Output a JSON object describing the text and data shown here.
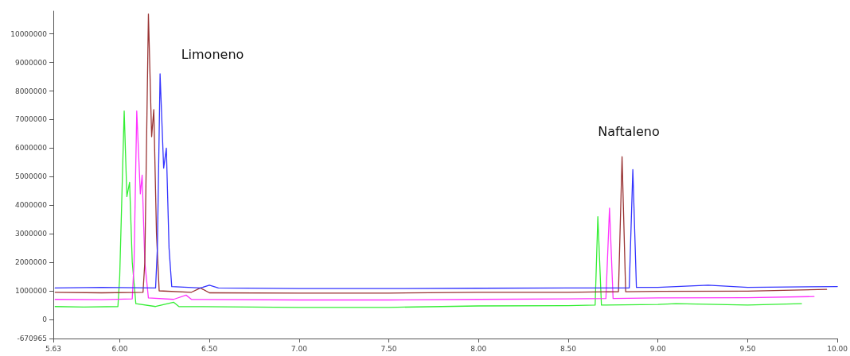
{
  "chart_data": {
    "type": "line",
    "xlim": [
      5.63,
      10
    ],
    "ylim": [
      -670965,
      10800000
    ],
    "xticks": [
      {
        "value": 5.63,
        "label": "5.63"
      },
      {
        "value": 6,
        "label": "6.00"
      },
      {
        "value": 6.5,
        "label": "6.50"
      },
      {
        "value": 7,
        "label": "7.00"
      },
      {
        "value": 7.5,
        "label": "7.50"
      },
      {
        "value": 8,
        "label": "8.00"
      },
      {
        "value": 8.5,
        "label": "8.50"
      },
      {
        "value": 9,
        "label": "9.00"
      },
      {
        "value": 9.5,
        "label": "9.50"
      },
      {
        "value": 10,
        "label": "10.00"
      }
    ],
    "yticks": [
      -670965,
      0,
      1000000,
      2000000,
      3000000,
      4000000,
      5000000,
      6000000,
      7000000,
      8000000,
      9000000,
      10000000
    ],
    "grid": false,
    "marker": "none",
    "line_style": "solid",
    "annotations": [
      "Limoneno",
      "Naftaleno"
    ],
    "series": [
      {
        "color": "#33ee33",
        "x": [
          5.64,
          5.8,
          5.99,
          6.0,
          6.025,
          6.04,
          6.055,
          6.07,
          6.09,
          6.2,
          6.3,
          6.33,
          7.0,
          7.5,
          8.0,
          8.5,
          8.65,
          8.665,
          8.685,
          9.0,
          9.1,
          9.5,
          9.8
        ],
        "values": [
          450000,
          430000,
          450000,
          1500000,
          7300000,
          4300000,
          4800000,
          2000000,
          550000,
          450000,
          600000,
          450000,
          420000,
          420000,
          470000,
          480000,
          500000,
          3600000,
          500000,
          520000,
          550000,
          500000,
          550000
        ]
      },
      {
        "color": "#ff33ff",
        "x": [
          5.64,
          5.9,
          6.07,
          6.08,
          6.095,
          6.115,
          6.125,
          6.14,
          6.16,
          6.3,
          6.37,
          6.4,
          7.0,
          7.5,
          8.0,
          8.5,
          8.71,
          8.73,
          8.75,
          9.0,
          9.5,
          9.87
        ],
        "values": [
          700000,
          690000,
          720000,
          2000000,
          7300000,
          4400000,
          5050000,
          2000000,
          750000,
          700000,
          850000,
          700000,
          680000,
          680000,
          700000,
          720000,
          730000,
          3900000,
          730000,
          750000,
          760000,
          800000
        ]
      },
      {
        "color": "#993333",
        "x": [
          5.64,
          5.9,
          6.13,
          6.14,
          6.16,
          6.178,
          6.19,
          6.205,
          6.22,
          6.4,
          6.45,
          6.5,
          7.0,
          7.5,
          8.0,
          8.5,
          8.78,
          8.8,
          8.82,
          9.0,
          9.5,
          9.94
        ],
        "values": [
          950000,
          930000,
          950000,
          2000000,
          10700000,
          6400000,
          7350000,
          3000000,
          1000000,
          950000,
          1100000,
          930000,
          920000,
          920000,
          950000,
          950000,
          970000,
          5700000,
          970000,
          980000,
          990000,
          1050000
        ]
      },
      {
        "color": "#3333ff",
        "x": [
          5.64,
          5.9,
          6.2,
          6.21,
          6.225,
          6.245,
          6.26,
          6.275,
          6.29,
          6.45,
          6.5,
          6.55,
          7.0,
          7.5,
          8.0,
          8.5,
          8.84,
          8.86,
          8.88,
          9.0,
          9.28,
          9.5,
          10.0
        ],
        "values": [
          1100000,
          1120000,
          1100000,
          2500000,
          8600000,
          5300000,
          6000000,
          2500000,
          1150000,
          1100000,
          1200000,
          1100000,
          1080000,
          1080000,
          1090000,
          1100000,
          1100000,
          5250000,
          1120000,
          1120000,
          1200000,
          1120000,
          1150000
        ]
      }
    ]
  }
}
